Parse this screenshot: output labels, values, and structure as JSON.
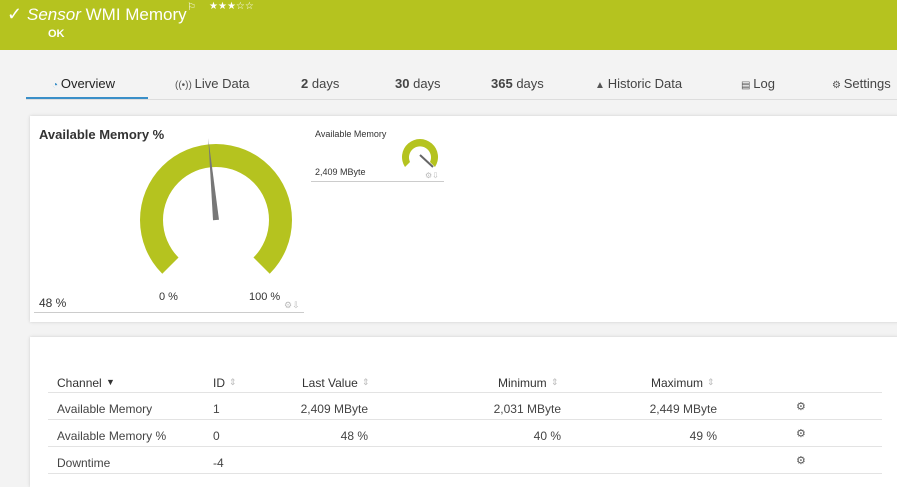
{
  "header": {
    "prefix": "Sensor",
    "title": "WMI Memory",
    "rating": 3,
    "rating_max": 5,
    "status": "OK"
  },
  "tabs": [
    {
      "label": "Overview"
    },
    {
      "label": "Live Data"
    },
    {
      "number": "2",
      "unit": "days"
    },
    {
      "number": "30",
      "unit": "days"
    },
    {
      "number": "365",
      "unit": "days"
    },
    {
      "label": "Historic Data"
    },
    {
      "label": "Log"
    },
    {
      "label": "Settings"
    }
  ],
  "gauge": {
    "title": "Available Memory %",
    "value": 48,
    "value_label": "48 %",
    "scale": [
      {
        "value": 0,
        "label": "0 %"
      },
      {
        "value": 100,
        "label": "100 %"
      }
    ]
  },
  "mini_gauge": {
    "title": "Available Memory",
    "value_label": "2,409 MByte"
  },
  "table": {
    "columns": [
      "Channel",
      "ID",
      "Last Value",
      "Minimum",
      "Maximum"
    ],
    "rows": [
      [
        "Available Memory",
        "1",
        "2,409 MByte",
        "2,031 MByte",
        "2,449 MByte"
      ],
      [
        "Available Memory %",
        "0",
        "48 %",
        "40 %",
        "49 %"
      ],
      [
        "Downtime",
        "-4",
        "",
        "",
        ""
      ]
    ]
  }
}
